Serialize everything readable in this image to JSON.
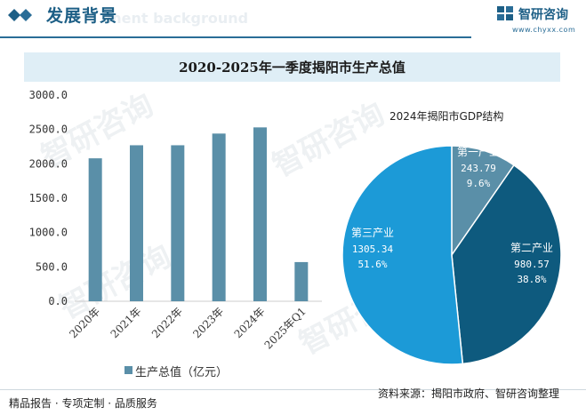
{
  "header": {
    "title": "发展背景",
    "subtitle": "ment background",
    "logo_text": "智研咨询",
    "url": "www.chyxx.com"
  },
  "chart_title": "2020-2025年一季度揭阳市生产总值",
  "watermark": "智研咨询",
  "chart_data": [
    {
      "type": "bar",
      "title": "2020-2025年一季度揭阳市生产总值",
      "categories": [
        "2020年",
        "2021年",
        "2022年",
        "2023年",
        "2024年",
        "2025年Q1"
      ],
      "series": [
        {
          "name": "生产总值（亿元）",
          "values": [
            2080,
            2270,
            2270,
            2440,
            2530,
            570
          ]
        }
      ],
      "ylim": [
        0,
        3000
      ],
      "yticks": [
        "0.0",
        "500.0",
        "1000.0",
        "1500.0",
        "2000.0",
        "2500.0",
        "3000.0"
      ],
      "color": "#5a8fa8",
      "legend_position": "bottom"
    },
    {
      "type": "pie",
      "title": "2024年揭阳市GDP结构",
      "slices": [
        {
          "name": "第一产业",
          "value": 243.79,
          "value_label": "243.79",
          "percent": "9.6%",
          "color": "#5a8fa8"
        },
        {
          "name": "第二产业",
          "value": 980.57,
          "value_label": "980.57",
          "percent": "38.8%",
          "color": "#0e5a7e"
        },
        {
          "name": "第三产业",
          "value": 1305.34,
          "value_label": "1305.34",
          "percent": "51.6%",
          "color": "#1c9ad7"
        }
      ]
    }
  ],
  "footer": {
    "left": "精品报告 · 专项定制 · 品质服务",
    "right": "资料来源：揭阳市政府、智研咨询整理"
  },
  "colors": {
    "accent": "#1d5f86",
    "bar": "#5a8fa8",
    "title_bar_bg": "#dfeef6"
  },
  "icons": {
    "header": "diamond-icon",
    "logo": "zhiyan-logo-icon"
  }
}
